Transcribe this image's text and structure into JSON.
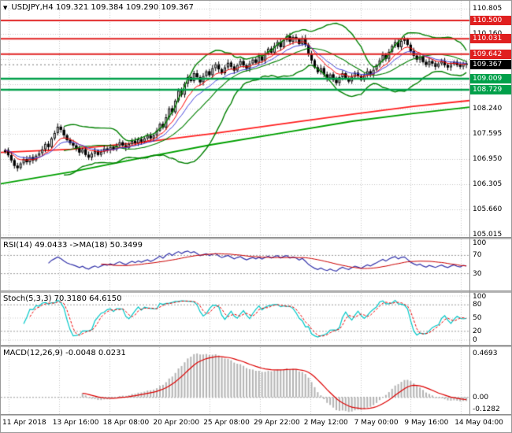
{
  "header": {
    "marker_icon": "▼",
    "title": "USDJPY,H4 109.321 109.384 109.290 109.367"
  },
  "colors": {
    "background": "#ffffff",
    "grid": "#c6c6c6",
    "level_line": "#9a9a9a",
    "candle_up_fill": "#ffffff",
    "candle_down_fill": "#000000",
    "candle_border": "#000000",
    "bollinger": "#008000",
    "ema_fast": "#ff0000",
    "ema_slow": "#4444dd",
    "trend_red": "#ff2020",
    "trend_green": "#00a000",
    "resistance": "#e02020",
    "support": "#00a04a",
    "current_line": "#777777",
    "badge_resistance": "#e02020",
    "badge_support": "#00a04a",
    "badge_current": "#000000",
    "rsi_line": "#3333aa",
    "rsi_ma": "#cc0000",
    "stoch_k": "#00c8c8",
    "stoch_d": "#ee0000",
    "macd_hist": "#b4b4b4",
    "macd_signal": "#dd0000"
  },
  "panels": {
    "rsi": {
      "label": "RSI(14) 49.0433  ->MA(18) 50.3499",
      "axis_labels": [
        {
          "v": 100,
          "t": "100"
        },
        {
          "v": 70,
          "t": "70"
        },
        {
          "v": 30,
          "t": "30"
        }
      ],
      "levels": [
        70,
        30
      ]
    },
    "stoch": {
      "label": "Stoch(5,3,3) 70.3180 64.6150",
      "axis_labels": [
        {
          "v": 100,
          "t": "100"
        },
        {
          "v": 80,
          "t": "80"
        },
        {
          "v": 50,
          "t": "50"
        },
        {
          "v": 20,
          "t": "20"
        },
        {
          "v": 0,
          "t": "0"
        }
      ],
      "levels": [
        80,
        20
      ],
      "gridlines": [
        100,
        50,
        0
      ]
    },
    "macd": {
      "label": "MACD(12,26,9) -0.0048 0.0231",
      "axis_labels": [
        {
          "v": 0.4693,
          "t": "0.4693"
        },
        {
          "v": 0,
          "t": "0.00"
        },
        {
          "v": -0.1282,
          "t": "-0.1282"
        }
      ]
    }
  },
  "price_axis": {
    "plain_labels": [
      {
        "v": 110.805,
        "t": "110.805"
      },
      {
        "v": 110.16,
        "t": "110.160"
      },
      {
        "v": 108.24,
        "t": "108.240"
      },
      {
        "v": 107.595,
        "t": "107.595"
      },
      {
        "v": 106.95,
        "t": "106.950"
      },
      {
        "v": 106.305,
        "t": "106.305"
      },
      {
        "v": 105.66,
        "t": "105.660"
      },
      {
        "v": 105.015,
        "t": "105.015"
      }
    ],
    "badges": [
      {
        "v": 110.5,
        "t": "110.500",
        "type": "resistance"
      },
      {
        "v": 110.031,
        "t": "110.031",
        "type": "resistance"
      },
      {
        "v": 109.642,
        "t": "109.642",
        "type": "resistance"
      },
      {
        "v": 109.367,
        "t": "109.367",
        "type": "current"
      },
      {
        "v": 109.009,
        "t": "109.009",
        "type": "support"
      },
      {
        "v": 108.729,
        "t": "108.729",
        "type": "support"
      }
    ]
  },
  "time_axis": {
    "labels": [
      "11 Apr 2018",
      "13 Apr 16:00",
      "18 Apr 08:00",
      "20 Apr 20:00",
      "25 Apr 08:00",
      "29 Apr 22:00",
      "2 May 12:00",
      "7 May 00:00",
      "9 May 16:00",
      "14 May 04:00"
    ]
  },
  "chart_data": {
    "type": "candlestick",
    "symbol": "USDJPY",
    "timeframe": "H4",
    "ohlc_header": {
      "open": 109.321,
      "high": 109.384,
      "low": 109.29,
      "close": 109.367
    },
    "ylim": [
      105.015,
      110.805
    ],
    "grid_values": [
      110.805,
      110.16,
      109.515,
      108.87,
      108.24,
      107.595,
      106.95,
      106.305,
      105.66,
      105.015
    ],
    "closes": [
      107.18,
      107.05,
      106.92,
      106.78,
      106.72,
      106.84,
      106.95,
      106.87,
      107.0,
      106.92,
      107.04,
      107.1,
      107.2,
      107.34,
      107.26,
      107.48,
      107.62,
      107.78,
      107.7,
      107.56,
      107.44,
      107.36,
      107.3,
      107.22,
      107.12,
      107.2,
      107.06,
      106.99,
      107.09,
      107.16,
      107.06,
      107.14,
      107.22,
      107.18,
      107.26,
      107.2,
      107.3,
      107.38,
      107.3,
      107.24,
      107.34,
      107.42,
      107.36,
      107.46,
      107.4,
      107.48,
      107.55,
      107.48,
      107.56,
      107.68,
      107.85,
      107.76,
      108.02,
      108.25,
      108.15,
      108.45,
      108.7,
      108.6,
      108.88,
      109.05,
      108.95,
      109.15,
      109.05,
      108.92,
      109.08,
      109.2,
      109.1,
      109.28,
      109.38,
      109.25,
      109.15,
      109.3,
      109.42,
      109.32,
      109.22,
      109.36,
      109.46,
      109.35,
      109.27,
      109.4,
      109.5,
      109.42,
      109.58,
      109.48,
      109.65,
      109.78,
      109.68,
      109.85,
      109.95,
      109.82,
      110.0,
      110.1,
      109.96,
      110.08,
      110.02,
      109.9,
      110.05,
      109.88,
      109.65,
      109.48,
      109.3,
      109.18,
      109.28,
      109.12,
      109.02,
      109.12,
      108.98,
      108.9,
      109.05,
      109.15,
      109.02,
      108.94,
      109.06,
      109.16,
      109.08,
      108.98,
      109.1,
      109.2,
      109.12,
      109.24,
      109.35,
      109.48,
      109.62,
      109.52,
      109.7,
      109.85,
      109.95,
      109.82,
      109.98,
      110.02,
      109.88,
      109.72,
      109.6,
      109.5,
      109.58,
      109.44,
      109.36,
      109.46,
      109.4,
      109.32,
      109.4,
      109.46,
      109.36,
      109.3,
      109.38,
      109.44,
      109.36,
      109.32,
      109.4,
      109.367
    ],
    "horizontal_lines": {
      "resistance": [
        110.5,
        110.031,
        109.642
      ],
      "support": [
        109.009,
        108.729
      ],
      "current": 109.367
    },
    "overlays": {
      "bollinger": {
        "period": 20,
        "deviation": 2
      },
      "ema_fast_period": 8,
      "ema_slow_period": 13,
      "trend_lines": [
        {
          "color_key": "trend_red",
          "points": [
            [
              0,
              107.12
            ],
            [
              0.15,
              107.2
            ],
            [
              0.3,
              107.38
            ],
            [
              0.45,
              107.6
            ],
            [
              0.6,
              107.85
            ],
            [
              0.75,
              108.1
            ],
            [
              0.88,
              108.3
            ],
            [
              1,
              108.45
            ]
          ]
        },
        {
          "color_key": "trend_green",
          "points": [
            [
              0,
              106.32
            ],
            [
              0.15,
              106.62
            ],
            [
              0.3,
              106.98
            ],
            [
              0.45,
              107.32
            ],
            [
              0.6,
              107.62
            ],
            [
              0.75,
              107.92
            ],
            [
              0.88,
              108.12
            ],
            [
              1,
              108.28
            ]
          ]
        }
      ]
    },
    "indicators": {
      "rsi": {
        "period": 14,
        "ma_period": 18,
        "current": 49.0433,
        "ma_current": 50.3499
      },
      "stoch": {
        "k": 5,
        "d": 3,
        "slowing": 3,
        "current_k": 70.318,
        "current_d": 64.615
      },
      "macd": {
        "fast": 12,
        "slow": 26,
        "signal": 9,
        "current": -0.0048,
        "current_signal": 0.0231,
        "axis_max": 0.4693,
        "axis_min": -0.1282
      }
    }
  }
}
